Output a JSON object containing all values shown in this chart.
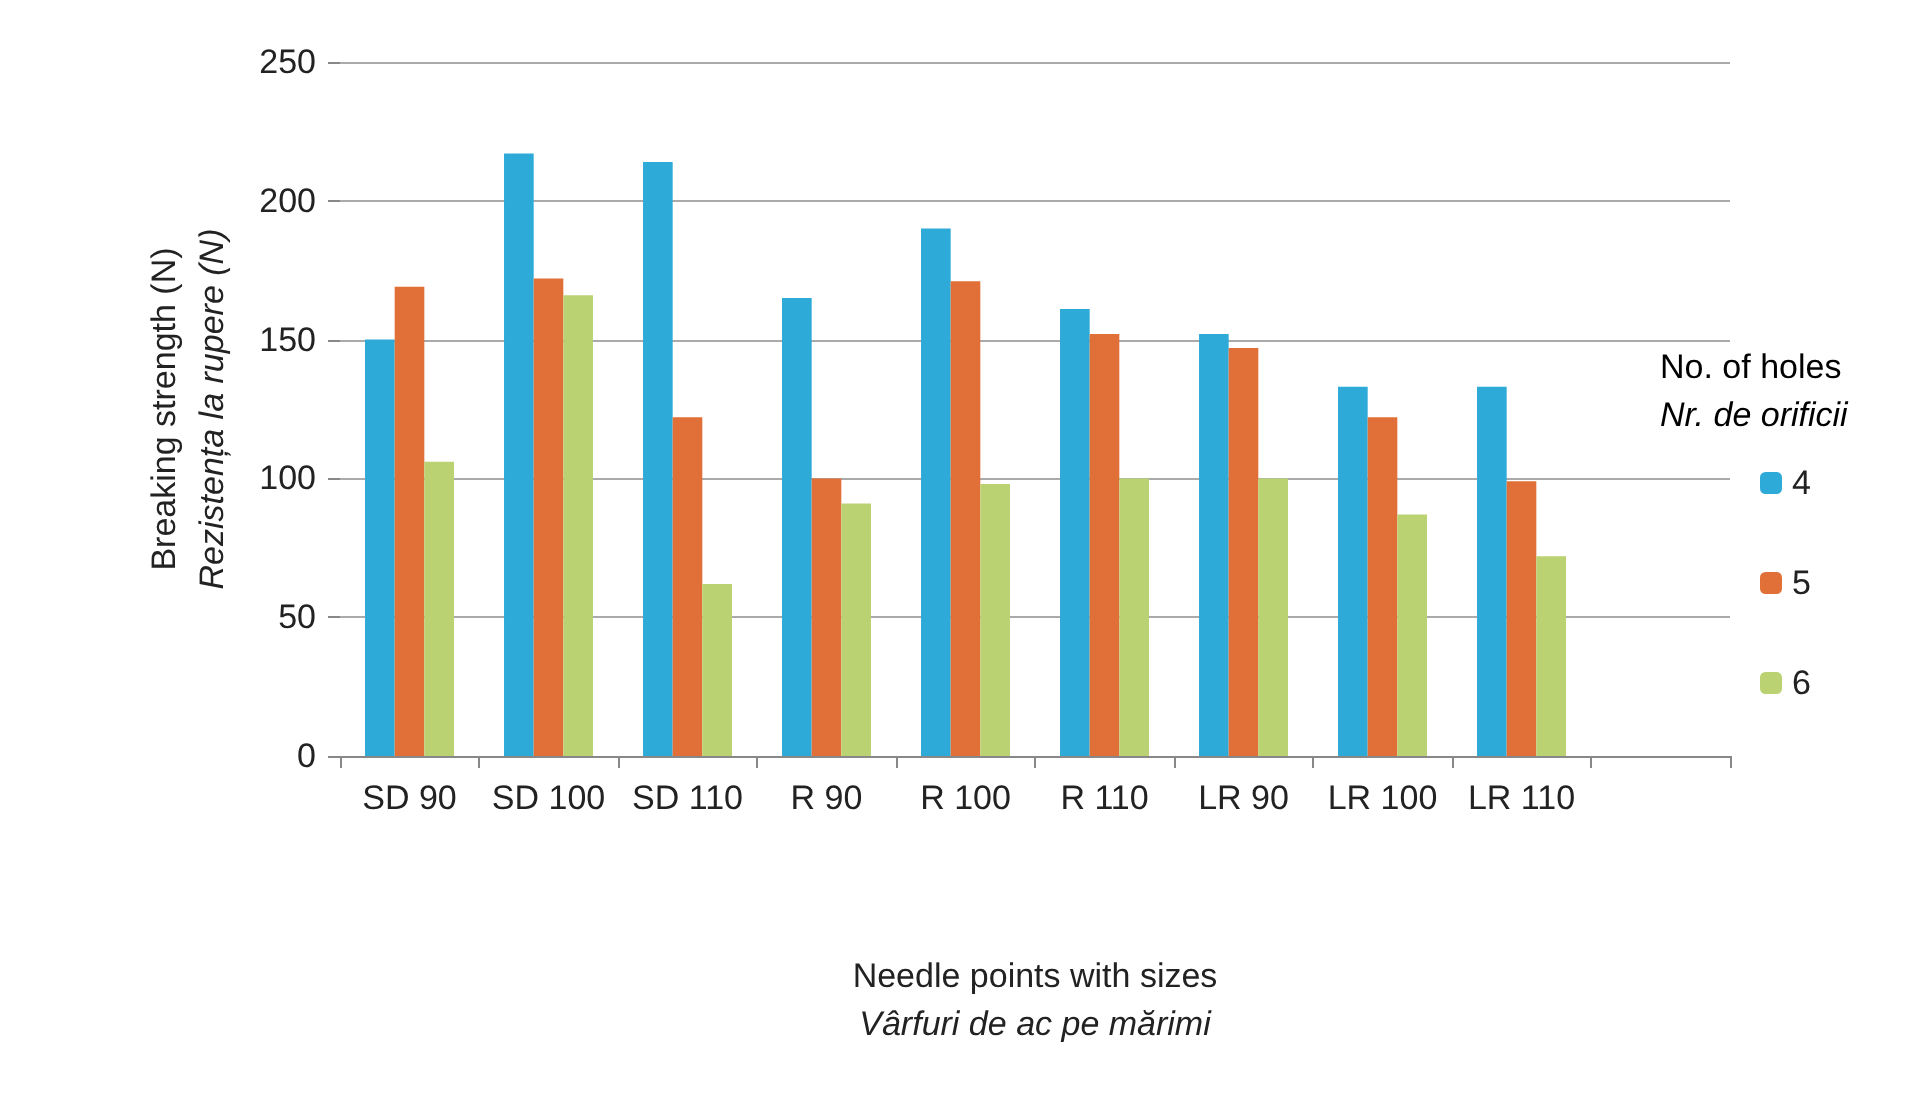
{
  "chart_data": {
    "type": "bar",
    "categories": [
      "SD 90",
      "SD 100",
      "SD 110",
      "R 90",
      "R 100",
      "R 110",
      "LR 90",
      "LR 100",
      "LR 110",
      null
    ],
    "xlabel": "Needle points with sizes\nVârfuri de ac pe mărimi",
    "ylabel": "Breaking strength (N)\nRezistența la rupere (N)",
    "legend_title": "No. of holes\nNr. de orificii",
    "series": [
      {
        "name": "4",
        "color": "#2eaad8",
        "values": [
          150,
          217,
          214,
          165,
          190,
          161,
          152,
          133,
          133,
          null
        ]
      },
      {
        "name": "5",
        "color": "#e07037",
        "values": [
          169,
          172,
          122,
          100,
          171,
          152,
          147,
          122,
          99,
          null
        ]
      },
      {
        "name": "6",
        "color": "#bad272",
        "values": [
          106,
          166,
          62,
          91,
          98,
          100,
          100,
          87,
          72,
          null
        ]
      }
    ],
    "ylim": [
      0,
      250
    ],
    "yticks": [
      0,
      50,
      100,
      150,
      200,
      250
    ],
    "grid": "y",
    "legend": "right"
  }
}
